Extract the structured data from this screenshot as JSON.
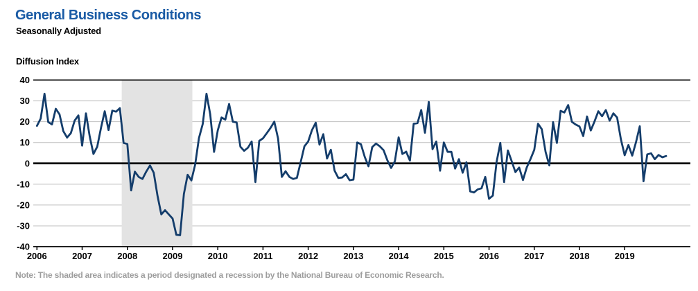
{
  "header": {
    "title": "General Business Conditions",
    "subtitle": "Seasonally Adjusted"
  },
  "note": {
    "text": "Note: The shaded area indicates a period designated a recession by the National Bureau of Economic Research."
  },
  "chart_data": {
    "type": "line",
    "title": "General Business Conditions",
    "subtitle": "Seasonally Adjusted",
    "ylabel": "Diffusion Index",
    "xlabel": "",
    "ylim": [
      -40,
      40
    ],
    "yticks": [
      40,
      30,
      20,
      10,
      0,
      -10,
      -20,
      -30,
      -40
    ],
    "xticks": [
      "2006",
      "2007",
      "2008",
      "2009",
      "2010",
      "2011",
      "2012",
      "2013",
      "2014",
      "2015",
      "2016",
      "2017",
      "2018",
      "2019"
    ],
    "x_start": "2006-01",
    "x_end": "2019-12",
    "frequency": "monthly",
    "grid": true,
    "legend_position": "none",
    "shaded_region": {
      "label": "NBER recession",
      "start": "2007-12",
      "end": "2009-06"
    },
    "colors": {
      "line": "#143d6b",
      "recession_band": "#e3e3e3",
      "gridline": "#bfbfbf",
      "axis": "#000000",
      "title": "#1a5ba5",
      "note": "#9d9d9d"
    },
    "series": [
      {
        "name": "General Business Conditions (diffusion index, seasonally adjusted)",
        "values": [
          18.0,
          21.5,
          33.4,
          19.8,
          18.7,
          26.2,
          23.5,
          15.5,
          12.4,
          14.5,
          20.5,
          23.0,
          8.5,
          24.0,
          13.0,
          4.5,
          8.0,
          17.0,
          25.0,
          16.0,
          25.3,
          24.8,
          26.5,
          9.8,
          9.3,
          -13.0,
          -4.0,
          -6.5,
          -7.5,
          -4.0,
          -1.0,
          -4.5,
          -15.5,
          -24.5,
          -22.5,
          -24.5,
          -26.5,
          -34.3,
          -34.5,
          -14.7,
          -5.5,
          -8.2,
          -0.5,
          12.1,
          18.9,
          33.4,
          23.5,
          5.5,
          15.9,
          22.0,
          21.0,
          28.5,
          20.0,
          19.6,
          8.0,
          6.0,
          7.5,
          10.5,
          -9.0,
          10.8,
          12.0,
          14.5,
          17.0,
          20.0,
          11.9,
          -6.5,
          -3.8,
          -6.5,
          -7.5,
          -7.0,
          0.6,
          8.2,
          10.5,
          16.0,
          19.5,
          9.0,
          14.0,
          2.3,
          6.5,
          -3.5,
          -7.0,
          -6.8,
          -5.2,
          -8.1,
          -7.8,
          10.0,
          9.2,
          3.1,
          -1.4,
          7.8,
          9.5,
          8.2,
          6.3,
          1.5,
          -2.2,
          1.0,
          12.5,
          4.5,
          5.6,
          1.3,
          19.0,
          19.3,
          25.6,
          14.7,
          29.5,
          6.8,
          10.5,
          -3.5,
          10.0,
          5.5,
          5.5,
          -2.5,
          2.0,
          -4.5,
          0.5,
          -13.5,
          -14.0,
          -12.5,
          -12.0,
          -6.5,
          -17.0,
          -15.5,
          0.6,
          9.8,
          -9.0,
          6.2,
          1.0,
          -4.2,
          -2.0,
          -8.0,
          -2.0,
          2.0,
          6.5,
          19.0,
          16.4,
          5.5,
          -1.0,
          19.8,
          9.8,
          25.2,
          24.4,
          28.0,
          19.9,
          18.6,
          17.7,
          13.1,
          22.5,
          15.8,
          20.1,
          25.0,
          22.6,
          25.6,
          20.5,
          24.0,
          22.0,
          11.5,
          3.9,
          8.8,
          3.7,
          10.1,
          17.8,
          -8.6,
          4.3,
          4.8,
          2.0,
          4.0,
          2.9,
          3.5
        ]
      }
    ]
  }
}
